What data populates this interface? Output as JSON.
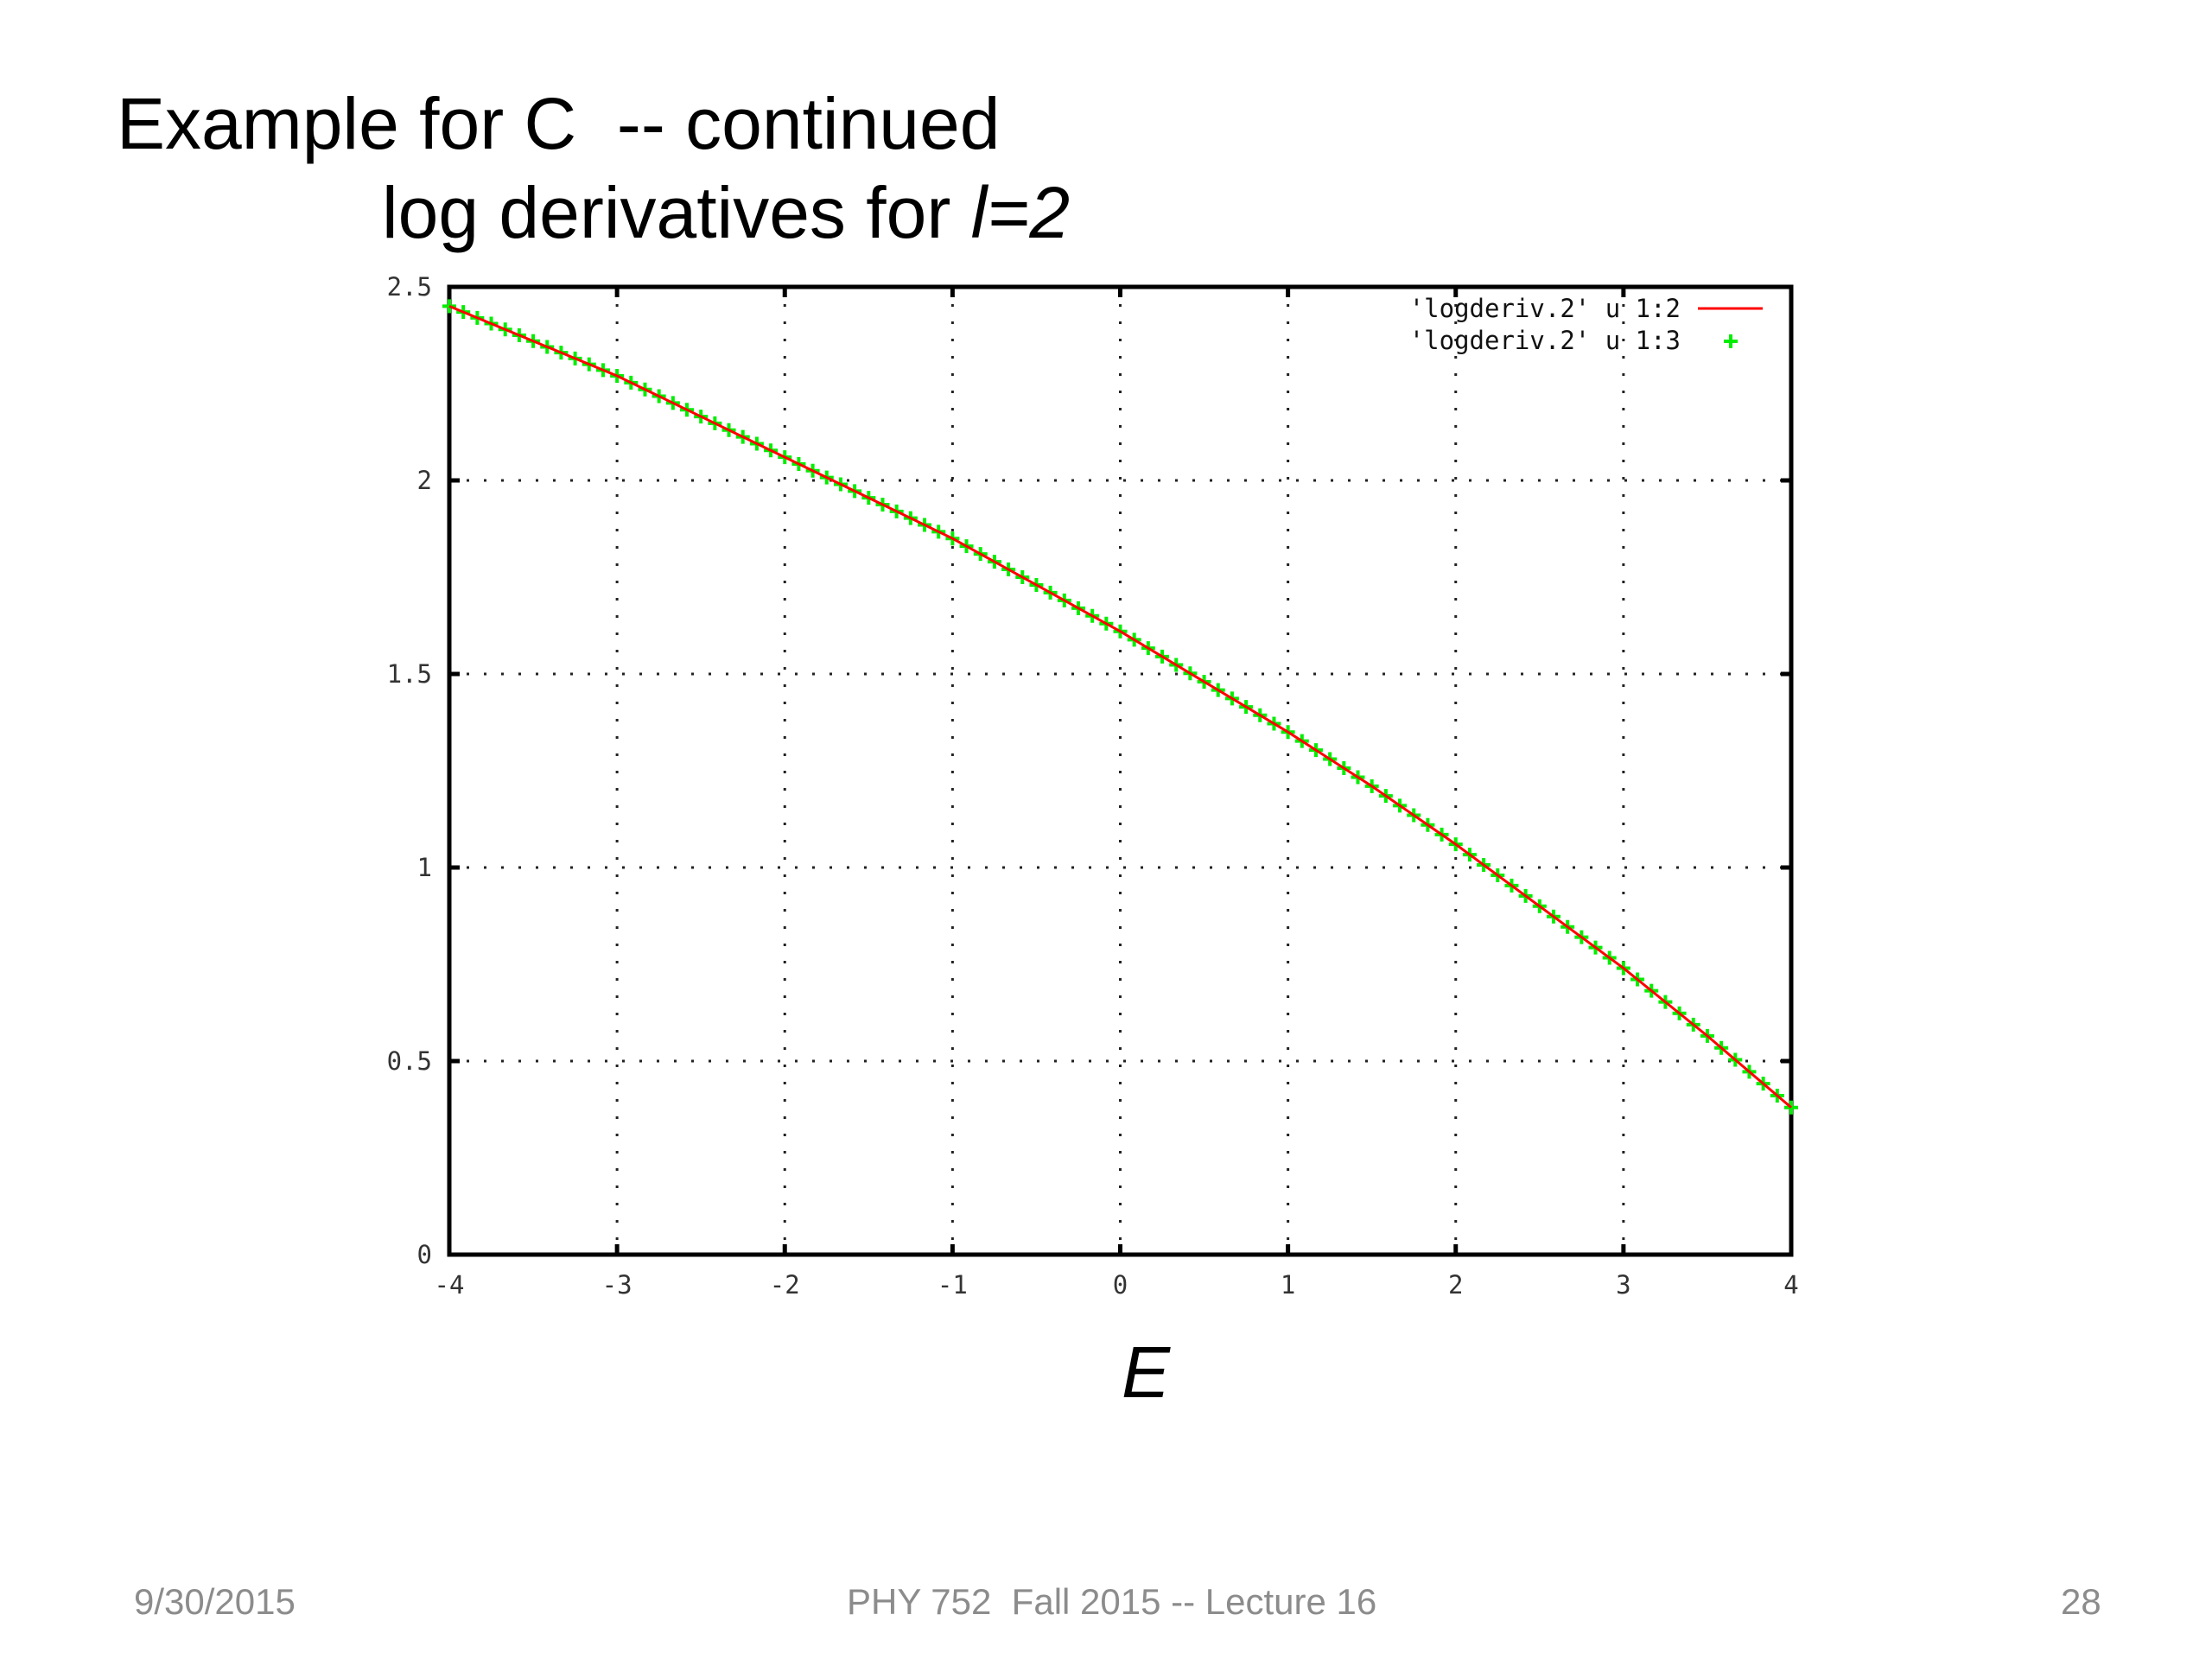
{
  "slide": {
    "title_line1": "Example for C  -- continued",
    "title_line2_prefix": "log derivatives for ",
    "title_line2_italic": "l=2",
    "footer_date": "9/30/2015",
    "footer_center": "PHY 752  Fall 2015 -- Lecture 16",
    "footer_page": "28"
  },
  "chart_data": {
    "type": "line",
    "title": "",
    "xlabel": "E",
    "ylabel": "",
    "xlim": [
      -4,
      4
    ],
    "ylim": [
      0,
      2.5
    ],
    "xticks": [
      "-4",
      "-3",
      "-2",
      "-1",
      "0",
      "1",
      "2",
      "3",
      "4"
    ],
    "yticks": [
      "0",
      "0.5",
      "1",
      "1.5",
      "2",
      "2.5"
    ],
    "grid": true,
    "legend_position": "top-right",
    "x": [
      -4,
      -3.5,
      -3,
      -2.5,
      -2,
      -1.5,
      -1,
      -0.5,
      0,
      0.5,
      1,
      1.5,
      2,
      2.5,
      3,
      3.5,
      4
    ],
    "series": [
      {
        "name": "'logderiv.2' u 1:2",
        "style": "line",
        "color": "#ff0000",
        "values": [
          2.45,
          2.36,
          2.27,
          2.165,
          2.06,
          1.955,
          1.85,
          1.73,
          1.61,
          1.48,
          1.35,
          1.21,
          1.06,
          0.9,
          0.74,
          0.565,
          0.38
        ]
      },
      {
        "name": "'logderiv.2' u 1:3",
        "style": "points",
        "marker": "plus",
        "color": "#00ee00",
        "values": [
          2.45,
          2.36,
          2.27,
          2.165,
          2.06,
          1.955,
          1.85,
          1.73,
          1.61,
          1.48,
          1.35,
          1.21,
          1.06,
          0.9,
          0.74,
          0.565,
          0.38
        ]
      }
    ]
  }
}
